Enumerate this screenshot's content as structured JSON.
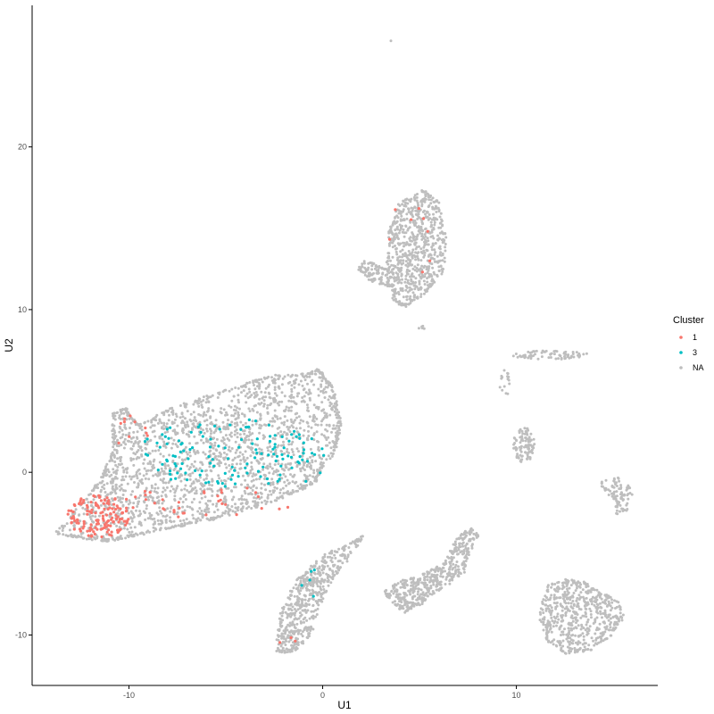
{
  "chart_data": {
    "type": "scatter",
    "xlabel": "U1",
    "ylabel": "U2",
    "xlim": [
      -15,
      17.3
    ],
    "ylim": [
      -13.1,
      28.7
    ],
    "x_ticks": [
      -10,
      0,
      10
    ],
    "y_ticks": [
      -10,
      0,
      10,
      20
    ],
    "grid": false,
    "legend": {
      "title": "Cluster",
      "placement": "right",
      "entries": [
        "1",
        "3",
        "NA"
      ]
    },
    "colors": {
      "1": "#F8766D",
      "3": "#00BFC4",
      "NA": "#BEBEBE"
    },
    "regions": [
      {
        "name": "NA",
        "shape": "poly",
        "n": 1800,
        "points": [
          [
            -13.8,
            -3.7
          ],
          [
            -12.6,
            -2.2
          ],
          [
            -11.5,
            -0.5
          ],
          [
            -10.8,
            1.2
          ],
          [
            -10.8,
            3.6
          ],
          [
            -10.2,
            3.9
          ],
          [
            -9.8,
            3.2
          ],
          [
            -9.5,
            2.9
          ],
          [
            -8.0,
            3.8
          ],
          [
            -6.0,
            4.6
          ],
          [
            -4.0,
            5.4
          ],
          [
            -2.5,
            5.9
          ],
          [
            -0.8,
            6.0
          ],
          [
            -0.2,
            6.3
          ],
          [
            0.5,
            5.2
          ],
          [
            0.9,
            3.0
          ],
          [
            0.6,
            1.3
          ],
          [
            -0.2,
            0.1
          ],
          [
            -0.4,
            -0.6
          ],
          [
            -2.0,
            -1.5
          ],
          [
            -3.5,
            -2.1
          ],
          [
            -5.5,
            -2.8
          ],
          [
            -7.5,
            -3.3
          ],
          [
            -9.5,
            -3.8
          ],
          [
            -11.0,
            -4.2
          ],
          [
            -12.5,
            -4.0
          ]
        ]
      },
      {
        "name": "NA",
        "shape": "poly",
        "n": 650,
        "points": [
          [
            3.3,
            12.5
          ],
          [
            3.5,
            15.0
          ],
          [
            4.0,
            16.5
          ],
          [
            5.2,
            17.3
          ],
          [
            6.0,
            16.6
          ],
          [
            6.3,
            14.5
          ],
          [
            6.2,
            12.4
          ],
          [
            5.4,
            11.2
          ],
          [
            4.3,
            10.2
          ],
          [
            3.6,
            10.6
          ],
          [
            3.7,
            11.4
          ],
          [
            2.5,
            11.8
          ],
          [
            1.9,
            12.5
          ],
          [
            2.2,
            13.0
          ]
        ]
      },
      {
        "name": "NA",
        "shape": "poly",
        "n": 420,
        "points": [
          [
            -2.4,
            -10.9
          ],
          [
            -2.1,
            -8.5
          ],
          [
            -1.3,
            -6.6
          ],
          [
            0.2,
            -5.0
          ],
          [
            1.5,
            -4.4
          ],
          [
            2.2,
            -3.8
          ],
          [
            1.1,
            -5.6
          ],
          [
            0.0,
            -7.6
          ],
          [
            -0.5,
            -9.6
          ],
          [
            -1.2,
            -10.8
          ],
          [
            -2.0,
            -11.1
          ]
        ]
      },
      {
        "name": "NA",
        "shape": "poly",
        "n": 380,
        "points": [
          [
            3.2,
            -7.3
          ],
          [
            4.0,
            -6.7
          ],
          [
            5.2,
            -6.3
          ],
          [
            6.4,
            -5.5
          ],
          [
            7.0,
            -4.0
          ],
          [
            7.7,
            -3.5
          ],
          [
            8.0,
            -3.9
          ],
          [
            7.5,
            -5.0
          ],
          [
            7.3,
            -6.2
          ],
          [
            6.2,
            -7.0
          ],
          [
            5.4,
            -7.8
          ],
          [
            4.3,
            -8.6
          ],
          [
            3.6,
            -8.0
          ]
        ]
      },
      {
        "name": "NA",
        "shape": "poly",
        "n": 470,
        "points": [
          [
            11.2,
            -8.7
          ],
          [
            11.7,
            -7.0
          ],
          [
            12.6,
            -6.6
          ],
          [
            13.5,
            -6.8
          ],
          [
            14.5,
            -7.5
          ],
          [
            15.2,
            -7.9
          ],
          [
            15.5,
            -8.9
          ],
          [
            14.8,
            -10.1
          ],
          [
            13.8,
            -10.9
          ],
          [
            12.5,
            -11.1
          ],
          [
            11.6,
            -10.3
          ]
        ]
      },
      {
        "name": "NA",
        "shape": "ellipse",
        "n": 100,
        "cx": 10.4,
        "cy": 1.7,
        "rx": 0.55,
        "ry": 1.1
      },
      {
        "name": "NA",
        "shape": "poly",
        "n": 80,
        "points": [
          [
            14.3,
            -0.7
          ],
          [
            15.1,
            -0.3
          ],
          [
            15.8,
            -0.9
          ],
          [
            16.0,
            -1.6
          ],
          [
            15.6,
            -2.4
          ],
          [
            15.1,
            -2.6
          ],
          [
            15.2,
            -1.8
          ],
          [
            14.7,
            -1.3
          ]
        ]
      },
      {
        "name": "NA",
        "shape": "ellipse",
        "n": 70,
        "cx": 11.8,
        "cy": 7.2,
        "rx": 2.0,
        "ry": 0.28
      },
      {
        "name": "NA",
        "shape": "ellipse",
        "n": 16,
        "cx": 9.4,
        "cy": 5.5,
        "rx": 0.3,
        "ry": 0.8
      },
      {
        "name": "NA",
        "shape": "ellipse",
        "n": 5,
        "cx": 5.1,
        "cy": 8.9,
        "rx": 0.25,
        "ry": 0.1
      },
      {
        "name": "NA",
        "shape": "ellipse",
        "n": 1,
        "cx": 3.5,
        "cy": 26.5,
        "rx": 0.05,
        "ry": 0.05
      },
      {
        "name": "1",
        "shape": "ellipse",
        "n": 150,
        "cx": -11.6,
        "cy": -2.7,
        "rx": 1.6,
        "ry": 1.3
      },
      {
        "name": "1",
        "shape": "ellipse",
        "n": 35,
        "cx": -6.0,
        "cy": -1.8,
        "rx": 4.5,
        "ry": 1.0
      },
      {
        "name": "1",
        "shape": "ellipse",
        "n": 10,
        "cx": -10.0,
        "cy": 2.5,
        "rx": 1.0,
        "ry": 1.0
      },
      {
        "name": "1",
        "shape": "ellipse",
        "n": 8,
        "cx": 4.6,
        "cy": 14.5,
        "rx": 1.2,
        "ry": 2.5
      },
      {
        "name": "1",
        "shape": "ellipse",
        "n": 3,
        "cx": -1.8,
        "cy": -10.2,
        "rx": 0.5,
        "ry": 0.5
      },
      {
        "name": "3",
        "shape": "ellipse",
        "n": 120,
        "cx": -5.0,
        "cy": 1.2,
        "rx": 4.5,
        "ry": 2.2
      },
      {
        "name": "3",
        "shape": "ellipse",
        "n": 15,
        "cx": -1.0,
        "cy": 0.8,
        "rx": 1.2,
        "ry": 1.5
      },
      {
        "name": "3",
        "shape": "ellipse",
        "n": 5,
        "cx": -0.6,
        "cy": -6.8,
        "rx": 0.6,
        "ry": 1.2
      }
    ]
  }
}
